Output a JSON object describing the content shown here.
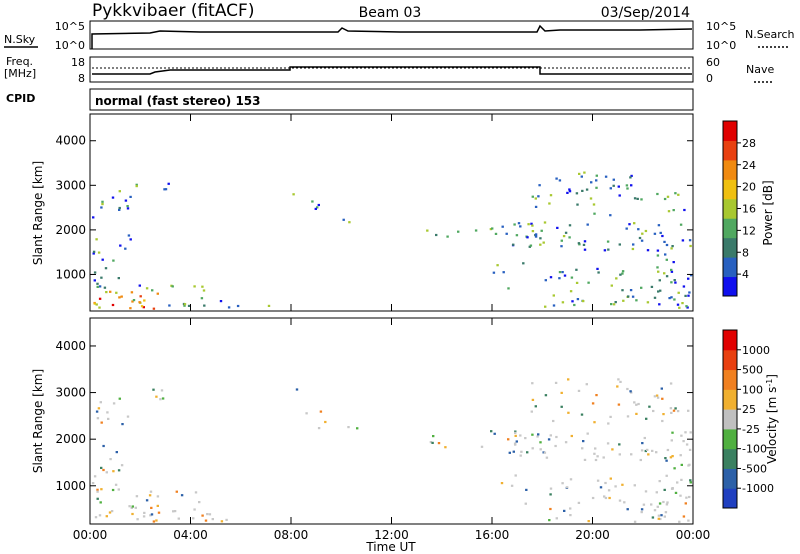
{
  "header": {
    "title": "Pykkvibaer (fitACF)",
    "beam": "Beam 03",
    "date": "03/Sep/2014"
  },
  "noise_panel": {
    "left_label": "N.Sky",
    "left_ticks": [
      "10^5",
      "10^0"
    ],
    "right_label": "N.Search",
    "right_ticks": [
      "10^5",
      "10^0"
    ]
  },
  "freq_panel": {
    "left_label_1": "Freq.",
    "left_label_2": "[MHz]",
    "left_ticks": [
      "18",
      "8"
    ],
    "right_label": "Nave",
    "right_ticks": [
      "60",
      "0"
    ]
  },
  "cpid_panel": {
    "label": "CPID",
    "text": "normal (fast stereo) 153"
  },
  "x_axis": {
    "title": "Time UT",
    "ticks": [
      "00:00",
      "04:00",
      "08:00",
      "12:00",
      "16:00",
      "20:00",
      "00:00"
    ]
  },
  "chart_data": [
    {
      "type": "heatmap",
      "title": "Power",
      "ylabel": "Slant Range [km]",
      "xlabel": "Time UT",
      "xlim": [
        0,
        24
      ],
      "ylim": [
        180,
        4600
      ],
      "y_ticks": [
        "1000",
        "2000",
        "3000",
        "4000"
      ],
      "colorbar": {
        "label": "Power [dB]",
        "ticks": [
          "4",
          "8",
          "12",
          "16",
          "20",
          "24",
          "28"
        ],
        "colors": [
          "#1010ee",
          "#2860c0",
          "#3a7a6a",
          "#50a860",
          "#a8c830",
          "#f0c010",
          "#f08a10",
          "#e84010",
          "#e00000"
        ]
      }
    },
    {
      "type": "heatmap",
      "title": "Velocity",
      "ylabel": "Slant Range [km]",
      "xlabel": "Time UT",
      "xlim": [
        0,
        24
      ],
      "ylim": [
        180,
        4600
      ],
      "y_ticks": [
        "1000",
        "2000",
        "3000",
        "4000"
      ],
      "colorbar": {
        "label": "Velocity [m s",
        "label_sup": "-1",
        "label_end": "]",
        "ticks": [
          "1000",
          "500",
          "100",
          "25",
          "-25",
          "-100",
          "-500",
          "-1000"
        ],
        "colors": [
          "#2040c0",
          "#2c60a8",
          "#3a8060",
          "#50b040",
          "#c0c0c0",
          "#f0b030",
          "#f08020",
          "#e84010",
          "#e00000"
        ]
      }
    }
  ],
  "colors": {
    "axis": "#000000",
    "ground_scatter": "#c8c8c8"
  }
}
